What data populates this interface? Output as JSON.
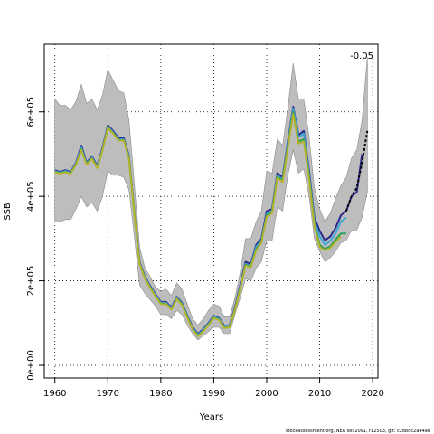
{
  "chart_data": {
    "type": "line",
    "title": "",
    "xlabel": "Years",
    "ylabel": "SSB",
    "xlim": [
      1958,
      2021
    ],
    "ylim": [
      -30000,
      760000
    ],
    "x_ticks": [
      1960,
      1970,
      1980,
      1990,
      2000,
      2010,
      2020
    ],
    "y_ticks": [
      0,
      200000,
      400000,
      600000
    ],
    "y_tick_labels": [
      "0e+00",
      "2e+05",
      "4e+05",
      "6e+05"
    ],
    "grid": true,
    "grid_style": "dotted",
    "annotation": "-0.05",
    "footer": "stockassessment.org, NEA sei 20v1, r12503, git: c28bdc2a44ad",
    "confidence_band": {
      "x": [
        1960,
        1961,
        1962,
        1963,
        1964,
        1965,
        1966,
        1967,
        1968,
        1969,
        1970,
        1971,
        1972,
        1973,
        1974,
        1975,
        1976,
        1977,
        1978,
        1979,
        1980,
        1981,
        1982,
        1983,
        1984,
        1985,
        1986,
        1987,
        1988,
        1989,
        1990,
        1991,
        1992,
        1993,
        1994,
        1995,
        1996,
        1997,
        1998,
        1999,
        2000,
        2001,
        2002,
        2003,
        2004,
        2005,
        2006,
        2007,
        2008,
        2009,
        2010,
        2011,
        2012,
        2013,
        2014,
        2015,
        2016,
        2017,
        2018,
        2019
      ],
      "upper": [
        630000,
        615000,
        615000,
        605000,
        625000,
        665000,
        620000,
        630000,
        605000,
        640000,
        700000,
        675000,
        650000,
        645000,
        580000,
        430000,
        280000,
        230000,
        210000,
        185000,
        175000,
        180000,
        165000,
        195000,
        180000,
        145000,
        110000,
        95000,
        110000,
        130000,
        145000,
        140000,
        115000,
        115000,
        160000,
        220000,
        300000,
        300000,
        340000,
        365000,
        460000,
        455000,
        535000,
        520000,
        610000,
        715000,
        630000,
        630000,
        540000,
        420000,
        370000,
        340000,
        360000,
        395000,
        425000,
        445000,
        490000,
        510000,
        580000,
        730000
      ],
      "lower": [
        340000,
        340000,
        345000,
        345000,
        370000,
        400000,
        375000,
        385000,
        365000,
        400000,
        460000,
        450000,
        450000,
        445000,
        415000,
        305000,
        190000,
        170000,
        155000,
        140000,
        120000,
        120000,
        110000,
        130000,
        120000,
        95000,
        75000,
        60000,
        70000,
        80000,
        90000,
        90000,
        75000,
        75000,
        120000,
        160000,
        205000,
        200000,
        230000,
        245000,
        295000,
        295000,
        375000,
        365000,
        450000,
        510000,
        455000,
        465000,
        400000,
        300000,
        270000,
        245000,
        255000,
        270000,
        290000,
        295000,
        320000,
        320000,
        350000,
        410000
      ]
    },
    "series": [
      {
        "name": "",
        "color": "#2b2a8c",
        "width": 2,
        "x": [
          1960,
          1961,
          1962,
          1963,
          1964,
          1965,
          1966,
          1967,
          1968,
          1969,
          1970,
          1971,
          1972,
          1973,
          1974,
          1975,
          1976,
          1977,
          1978,
          1979,
          1980,
          1981,
          1982,
          1983,
          1984,
          1985,
          1986,
          1987,
          1988,
          1989,
          1990,
          1991,
          1992,
          1993,
          1994,
          1995,
          1996,
          1997,
          1998,
          1999,
          2000,
          2001,
          2002,
          2003,
          2004,
          2005,
          2006,
          2007,
          2008,
          2009,
          2010,
          2011,
          2012,
          2013,
          2014,
          2015,
          2016,
          2017,
          2018
        ],
        "y": [
          462000,
          458000,
          462000,
          458000,
          480000,
          520000,
          480000,
          495000,
          472000,
          515000,
          568000,
          555000,
          538000,
          538000,
          495000,
          365000,
          245000,
          210000,
          188000,
          168000,
          150000,
          150000,
          137000,
          162000,
          148000,
          118000,
          90000,
          74000,
          85000,
          100000,
          117000,
          112000,
          93000,
          95000,
          138000,
          190000,
          245000,
          240000,
          285000,
          300000,
          365000,
          370000,
          455000,
          445000,
          530000,
          612000,
          545000,
          555000,
          460000,
          350000,
          318000,
          296000,
          305000,
          325000,
          355000,
          365000,
          400000,
          410000,
          500000
        ]
      },
      {
        "name": "",
        "color": "#3fa7d6",
        "width": 2,
        "x": [
          1960,
          1961,
          1962,
          1963,
          1964,
          1965,
          1966,
          1967,
          1968,
          1969,
          1970,
          1971,
          1972,
          1973,
          1974,
          1975,
          1976,
          1977,
          1978,
          1979,
          1980,
          1981,
          1982,
          1983,
          1984,
          1985,
          1986,
          1987,
          1988,
          1989,
          1990,
          1991,
          1992,
          1993,
          1994,
          1995,
          1996,
          1997,
          1998,
          1999,
          2000,
          2001,
          2002,
          2003,
          2004,
          2005,
          2006,
          2007,
          2008,
          2009,
          2010,
          2011,
          2012,
          2013,
          2014,
          2015
        ],
        "y": [
          460000,
          456000,
          460000,
          456000,
          478000,
          515000,
          478000,
          492000,
          470000,
          512000,
          565000,
          552000,
          535000,
          535000,
          492000,
          362000,
          243000,
          208000,
          186000,
          166000,
          148000,
          148000,
          135000,
          160000,
          146000,
          116000,
          88000,
          72000,
          83000,
          98000,
          115000,
          110000,
          91000,
          93000,
          135000,
          186000,
          240000,
          236000,
          280000,
          295000,
          358000,
          365000,
          450000,
          440000,
          525000,
          608000,
          540000,
          548000,
          452000,
          342000,
          305000,
          285000,
          295000,
          312000,
          340000,
          350000
        ]
      },
      {
        "name": "",
        "color": "#2e9e5b",
        "width": 2,
        "x": [
          1960,
          1961,
          1962,
          1963,
          1964,
          1965,
          1966,
          1967,
          1968,
          1969,
          1970,
          1971,
          1972,
          1973,
          1974,
          1975,
          1976,
          1977,
          1978,
          1979,
          1980,
          1981,
          1982,
          1983,
          1984,
          1985,
          1986,
          1987,
          1988,
          1989,
          1990,
          1991,
          1992,
          1993,
          1994,
          1995,
          1996,
          1997,
          1998,
          1999,
          2000,
          2001,
          2002,
          2003,
          2004,
          2005,
          2006,
          2007,
          2008,
          2009,
          2010,
          2011,
          2012,
          2013,
          2014,
          2015
        ],
        "y": [
          458000,
          455000,
          458000,
          455000,
          476000,
          512000,
          476000,
          490000,
          468000,
          510000,
          563000,
          550000,
          533000,
          533000,
          490000,
          360000,
          241000,
          206000,
          184000,
          164000,
          146000,
          146000,
          133000,
          158000,
          144000,
          114000,
          86000,
          70000,
          81000,
          96000,
          113000,
          108000,
          89000,
          91000,
          133000,
          183000,
          238000,
          234000,
          275000,
          292000,
          355000,
          362000,
          447000,
          437000,
          520000,
          600000,
          530000,
          535000,
          445000,
          335000,
          285000,
          275000,
          282000,
          298000,
          312000,
          312000
        ]
      },
      {
        "name": "",
        "color": "#b3b32a",
        "width": 2,
        "x": [
          1960,
          1961,
          1962,
          1963,
          1964,
          1965,
          1966,
          1967,
          1968,
          1969,
          1970,
          1971,
          1972,
          1973,
          1974,
          1975,
          1976,
          1977,
          1978,
          1979,
          1980,
          1981,
          1982,
          1983,
          1984,
          1985,
          1986,
          1987,
          1988,
          1989,
          1990,
          1991,
          1992,
          1993,
          1994,
          1995,
          1996,
          1997,
          1998,
          1999,
          2000,
          2001,
          2002,
          2003,
          2004,
          2005,
          2006,
          2007,
          2008,
          2009,
          2010,
          2011,
          2012,
          2013,
          2014
        ],
        "y": [
          457000,
          454000,
          457000,
          454000,
          475000,
          510000,
          475000,
          489000,
          467000,
          509000,
          562000,
          549000,
          532000,
          532000,
          489000,
          359000,
          240000,
          205000,
          183000,
          163000,
          145000,
          145000,
          132000,
          157000,
          143000,
          113000,
          85000,
          69000,
          80000,
          95000,
          112000,
          107000,
          88000,
          90000,
          132000,
          182000,
          236000,
          232000,
          272000,
          290000,
          352000,
          360000,
          444000,
          434000,
          515000,
          595000,
          525000,
          530000,
          440000,
          330000,
          280000,
          272000,
          278000,
          292000,
          305000
        ]
      },
      {
        "name": "",
        "color": "#000000",
        "width": 2,
        "dashed": true,
        "x": [
          2015,
          2016,
          2017,
          2018,
          2019
        ],
        "y": [
          365000,
          400000,
          420000,
          480000,
          555000
        ]
      }
    ]
  }
}
